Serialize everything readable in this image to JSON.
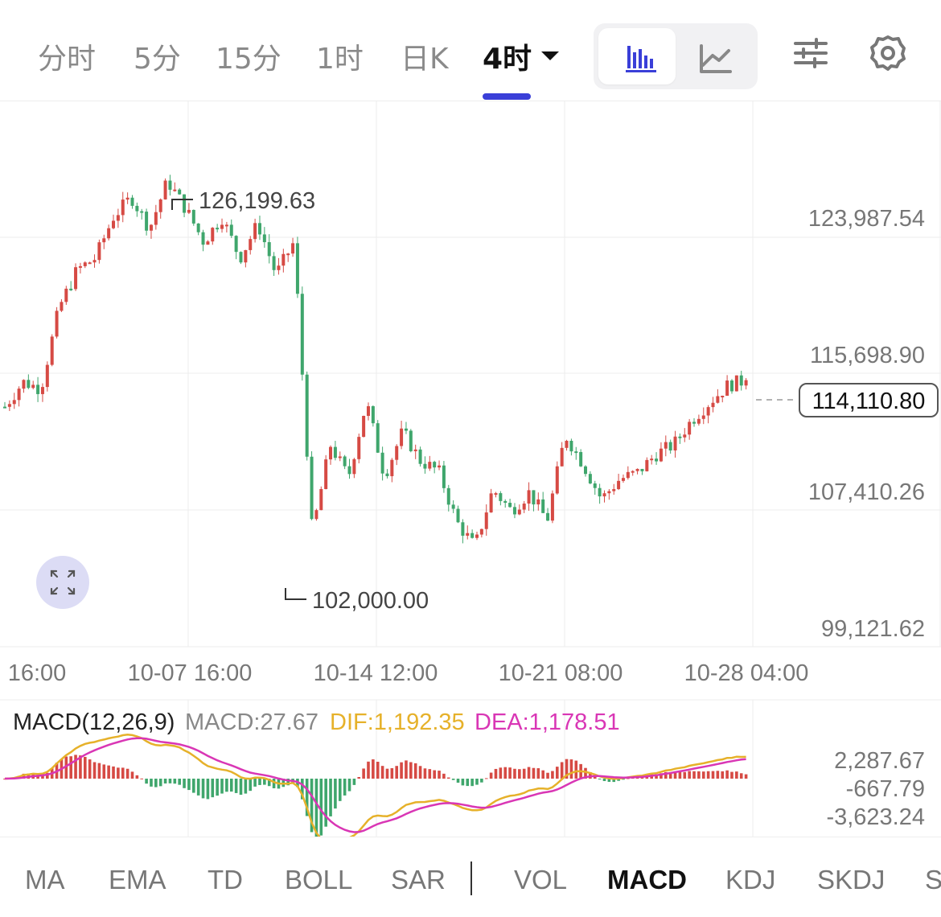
{
  "tabs": [
    {
      "label": "分时"
    },
    {
      "label": "5分"
    },
    {
      "label": "15分"
    },
    {
      "label": "1时"
    },
    {
      "label": "日K"
    },
    {
      "label": "4时"
    }
  ],
  "active_tab": "4时",
  "toolbar": {
    "chart_type_candles_icon": "bar-chart-icon",
    "chart_type_line_icon": "line-chart-icon",
    "settings_sliders_icon": "sliders-icon",
    "settings_gear_icon": "gear-icon"
  },
  "price_axis": [
    "123,987.54",
    "115,698.90",
    "107,410.26",
    "99,121.62"
  ],
  "current_price": "114,110.80",
  "high_label": "126,199.63",
  "low_label": "102,000.00",
  "time_axis": [
    "16:00",
    "10-07 16:00",
    "10-14 12:00",
    "10-21 08:00",
    "10-28 04:00"
  ],
  "macd": {
    "title": "MACD(12,26,9)",
    "macd_value": "MACD:27.67",
    "dif_value": "DIF:1,192.35",
    "dea_value": "DEA:1,178.51",
    "axis": [
      "2,287.67",
      "-667.79",
      "-3,623.24"
    ]
  },
  "indicators": [
    "MA",
    "EMA",
    "TD",
    "BOLL",
    "SAR",
    "VOL",
    "MACD",
    "KDJ",
    "SKDJ",
    "S"
  ],
  "active_indicator": "MACD",
  "colors": {
    "up": "#d64a44",
    "down": "#3fa66c",
    "accent": "#3a3fd8",
    "dif": "#e6b12a",
    "dea": "#d936b5"
  },
  "chart_data": {
    "type": "candlestick",
    "x_range": [
      "16:00",
      "10-28 04:00"
    ],
    "ylim": [
      99121.62,
      128500
    ],
    "high": 126199.63,
    "low": 102000.0,
    "last": 114110.8,
    "path": [
      112500,
      114000,
      113600,
      118500,
      120800,
      121500,
      124000,
      125200,
      123300,
      126199.63,
      124500,
      122500,
      124000,
      121500,
      123600,
      120500,
      122500,
      104800,
      110200,
      108200,
      112800,
      108300,
      111000,
      109200,
      108600,
      105500,
      104000,
      107500,
      106200,
      107300,
      105600,
      110800,
      109000,
      106900,
      108100,
      108500,
      109600,
      110200,
      111700,
      112800,
      113800,
      114110.8
    ]
  }
}
